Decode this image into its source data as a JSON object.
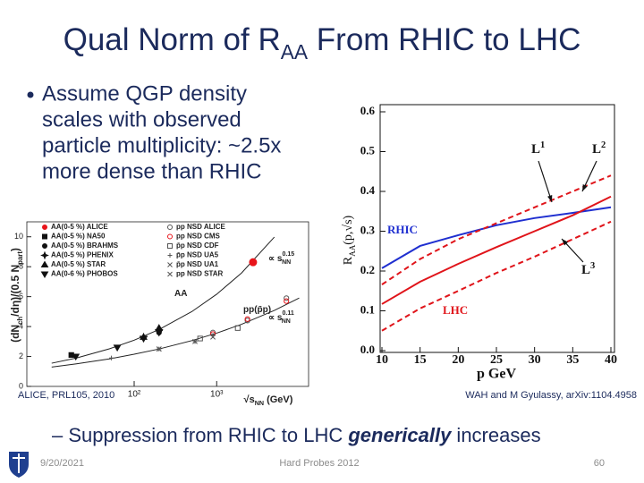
{
  "title": [
    "Qual Norm of R",
    "AA",
    " From RHIC to LHC"
  ],
  "bullet": [
    "Assume QGP density",
    "scales with observed",
    "particle multiplicity: ~2.5x",
    "more dense than RHIC"
  ],
  "sub_bullet": {
    "prefix": "Suppression from RHIC to LHC ",
    "emphasis": "generically",
    "suffix": " increases"
  },
  "left_figure": {
    "caption": "ALICE, PRL105, 2010",
    "xlabel": [
      "√s",
      "NN",
      " (GeV)"
    ],
    "ylabel": [
      "(dN",
      "ch",
      "/dη)/(0.5 N",
      "part",
      ")"
    ],
    "xscale": "log",
    "xlim": [
      5,
      13000
    ],
    "ylim": [
      0,
      11
    ],
    "xticks": [
      {
        "value": 100,
        "label": "10²"
      },
      {
        "value": 1000,
        "label": "10³"
      }
    ],
    "yticks": [
      0,
      2,
      4,
      6,
      8,
      10
    ],
    "series": [
      {
        "name": "AA(0-5 %) ALICE",
        "marker": "circle",
        "filled": true,
        "color": "#e8141a",
        "x": [
          2760
        ],
        "values": [
          8.3
        ]
      },
      {
        "name": "AA(0-5 %) NA50",
        "marker": "square",
        "filled": true,
        "color": "#111111",
        "x": [
          17.3
        ],
        "values": [
          2.1
        ]
      },
      {
        "name": "AA(0-5 %) BRAHMS",
        "marker": "circle",
        "filled": true,
        "color": "#111111",
        "x": [
          200
        ],
        "values": [
          3.6
        ]
      },
      {
        "name": "AA(0-5 %) PHENIX",
        "marker": "star",
        "filled": true,
        "color": "#111111",
        "x": [
          130,
          200
        ],
        "values": [
          3.3,
          3.8
        ]
      },
      {
        "name": "AA(0-5 %) STAR",
        "marker": "triangle",
        "filled": true,
        "color": "#111111",
        "x": [
          130,
          200
        ],
        "values": [
          3.3,
          3.9
        ]
      },
      {
        "name": "AA(0-6 %) PHOBOS",
        "marker": "down",
        "filled": true,
        "color": "#111111",
        "x": [
          19.6,
          62.4,
          130,
          200
        ],
        "values": [
          2.0,
          2.6,
          3.2,
          3.6
        ]
      },
      {
        "name": "pp NSD ALICE",
        "marker": "circle",
        "filled": false,
        "color": "#555555",
        "x": [
          900,
          2360,
          7000
        ],
        "values": [
          3.6,
          4.4,
          5.9
        ]
      },
      {
        "name": "pp NSD CMS",
        "marker": "circle",
        "filled": false,
        "color": "#e8141a",
        "x": [
          900,
          2360,
          7000
        ],
        "values": [
          3.5,
          4.5,
          5.7
        ]
      },
      {
        "name": "p̄p NSD CDF",
        "marker": "square",
        "filled": false,
        "color": "#555555",
        "x": [
          630,
          1800
        ],
        "values": [
          3.2,
          3.9
        ]
      },
      {
        "name": "p̄p NSD UA5",
        "marker": "cross",
        "filled": false,
        "color": "#555555",
        "x": [
          53,
          200,
          546,
          900
        ],
        "values": [
          1.9,
          2.5,
          3.0,
          3.4
        ]
      },
      {
        "name": "p̄p NSD UA1",
        "marker": "x",
        "filled": false,
        "color": "#555555",
        "x": [
          200,
          546,
          900
        ],
        "values": [
          2.5,
          3.0,
          3.3
        ]
      },
      {
        "name": "pp NSD STAR",
        "marker": "x",
        "filled": false,
        "color": "#555555",
        "x": [
          200
        ],
        "values": [
          2.5
        ]
      }
    ],
    "curves": [
      {
        "x": [
          10,
          20,
          50,
          100,
          200,
          500,
          1000,
          2000,
          5000
        ],
        "values": [
          1.55,
          1.9,
          2.51,
          3.09,
          3.8,
          5.0,
          6.16,
          7.58,
          9.98
        ]
      },
      {
        "x": [
          10,
          20,
          50,
          100,
          200,
          500,
          1000,
          2000,
          5000,
          10000
        ],
        "values": [
          1.29,
          1.51,
          1.84,
          2.15,
          2.5,
          3.06,
          3.56,
          4.15,
          5.08,
          5.91
        ]
      }
    ],
    "annotations": [
      {
        "text": "AA"
      },
      {
        "text": "pp(p̄p)"
      },
      {
        "text": "∝ s",
        "sub": "NN",
        "sup": "0.15"
      },
      {
        "text": "∝ s",
        "sub": "NN",
        "sup": "0.11"
      }
    ]
  },
  "right_figure": {
    "caption": "WAH and M Gyulassy, arXiv:1104.4958",
    "xlabel": "p GeV",
    "ylabel": [
      "R",
      "AA",
      "(p,√s)"
    ],
    "xlim": [
      10,
      40
    ],
    "ylim": [
      0,
      0.6
    ],
    "xticks": [
      10,
      15,
      20,
      25,
      30,
      35,
      40
    ],
    "yticks": [
      {
        "value": 0,
        "label": "0.0"
      },
      0.1,
      0.2,
      0.3,
      0.4,
      0.5,
      0.6
    ],
    "x": [
      10,
      15,
      20,
      25,
      30,
      35,
      40
    ],
    "series": [
      {
        "color": "#1f2fd0",
        "dash": false,
        "values": [
          0.207,
          0.263,
          0.29,
          0.315,
          0.333,
          0.346,
          0.36
        ]
      },
      {
        "color": "#e0141a",
        "dash": false,
        "values": [
          0.117,
          0.173,
          0.218,
          0.26,
          0.3,
          0.34,
          0.387
        ]
      },
      {
        "color": "#e0141a",
        "dash": true,
        "values": [
          0.166,
          0.23,
          0.28,
          0.32,
          0.36,
          0.4,
          0.44
        ]
      },
      {
        "color": "#e0141a",
        "dash": true,
        "values": [
          0.05,
          0.106,
          0.15,
          0.195,
          0.236,
          0.28,
          0.324
        ]
      }
    ],
    "annotations": [
      {
        "text": "RHIC"
      },
      {
        "text": "LHC"
      },
      {
        "text": "L",
        "sup": "1"
      },
      {
        "text": "L",
        "sup": "2"
      },
      {
        "text": "L",
        "sup": "3"
      }
    ]
  },
  "footer": {
    "date": "9/20/2021",
    "center": "Hard Probes 2012",
    "page": "60"
  }
}
